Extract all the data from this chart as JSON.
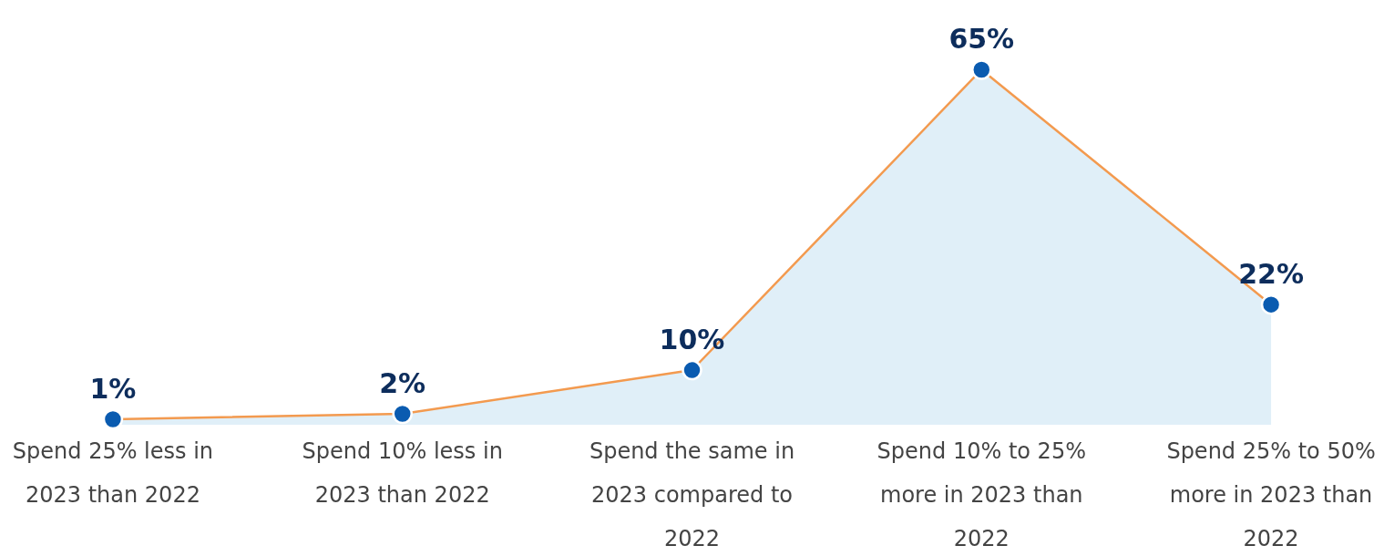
{
  "chart_data": {
    "type": "area",
    "categories": [
      "Spend 25% less in 2023 than 2022",
      "Spend 10% less in 2023 than 2022",
      "Spend the same in 2023 compared to 2022",
      "Spend 10% to 25% more in 2023 than 2022",
      "Spend 25% to 50% more in 2023 than 2022"
    ],
    "series": [
      {
        "color": "#f39a4f",
        "values": [
          1,
          2,
          10,
          65,
          22
        ],
        "value_labels": [
          "1%",
          "2%",
          "10%",
          "65%",
          "22%"
        ]
      }
    ],
    "marker": "circle"
  }
}
